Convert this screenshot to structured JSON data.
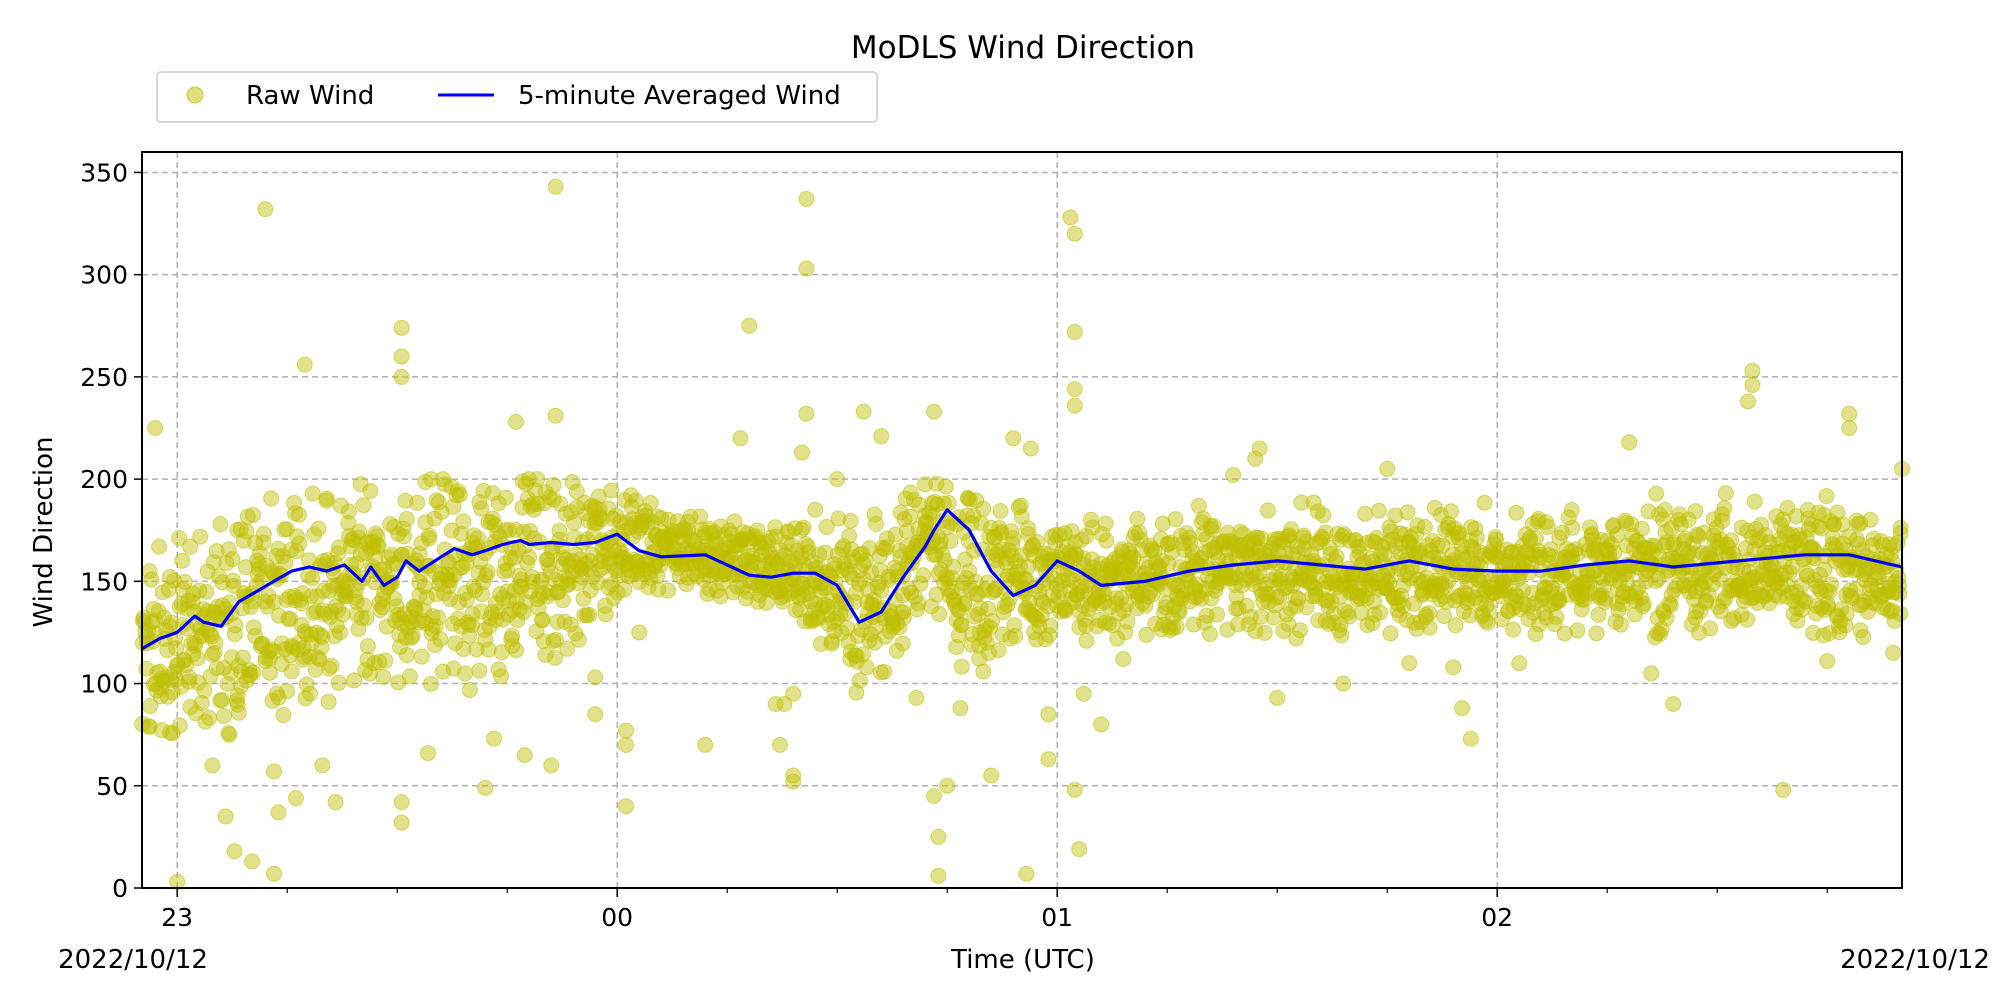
{
  "chart_data": {
    "type": "scatter",
    "title": "MoDLS Wind Direction",
    "xlabel": "Time (UTC)",
    "ylabel": "Wind Direction",
    "date_left": "2022/10/12",
    "date_right": "2022/10/12",
    "x_unit": "hours",
    "xlim": [
      -0.08,
      3.92
    ],
    "ylim": [
      0,
      360
    ],
    "yticks": [
      0,
      50,
      100,
      150,
      200,
      250,
      300,
      350
    ],
    "xticks": [
      {
        "x": 0,
        "label": "23"
      },
      {
        "x": 1,
        "label": "00"
      },
      {
        "x": 2,
        "label": "01"
      },
      {
        "x": 3,
        "label": "02"
      }
    ],
    "grid": true,
    "grid_style": "dashed",
    "legend": {
      "placement": "top-left, above plot"
    },
    "colors": {
      "raw": "#bfbf00",
      "avg": "#0000ff"
    },
    "series": [
      {
        "name": "Raw Wind",
        "kind": "scatter",
        "note": "dense cloud of raw samples; band limits (lo/mid/hi in degrees) at sampled hours plus outliers",
        "band": [
          {
            "x": -0.08,
            "lo": 80,
            "mid": 115,
            "hi": 195
          },
          {
            "x": 0.0,
            "lo": 75,
            "mid": 120,
            "hi": 200
          },
          {
            "x": 0.2,
            "lo": 75,
            "mid": 135,
            "hi": 200
          },
          {
            "x": 0.4,
            "lo": 80,
            "mid": 145,
            "hi": 200
          },
          {
            "x": 0.6,
            "lo": 75,
            "mid": 150,
            "hi": 200
          },
          {
            "x": 0.8,
            "lo": 80,
            "mid": 158,
            "hi": 200
          },
          {
            "x": 1.0,
            "lo": 135,
            "mid": 168,
            "hi": 200
          },
          {
            "x": 1.2,
            "lo": 140,
            "mid": 163,
            "hi": 185
          },
          {
            "x": 1.4,
            "lo": 130,
            "mid": 155,
            "hi": 180
          },
          {
            "x": 1.5,
            "lo": 90,
            "mid": 145,
            "hi": 180
          },
          {
            "x": 1.6,
            "lo": 100,
            "mid": 140,
            "hi": 205
          },
          {
            "x": 1.7,
            "lo": 140,
            "mid": 175,
            "hi": 215
          },
          {
            "x": 1.8,
            "lo": 75,
            "mid": 150,
            "hi": 190
          },
          {
            "x": 2.0,
            "lo": 110,
            "mid": 150,
            "hi": 185
          },
          {
            "x": 2.4,
            "lo": 120,
            "mid": 155,
            "hi": 190
          },
          {
            "x": 3.0,
            "lo": 125,
            "mid": 155,
            "hi": 195
          },
          {
            "x": 3.6,
            "lo": 120,
            "mid": 158,
            "hi": 195
          },
          {
            "x": 3.92,
            "lo": 120,
            "mid": 157,
            "hi": 195
          }
        ],
        "outliers": [
          [
            0.2,
            332
          ],
          [
            0.22,
            7
          ],
          [
            0.13,
            18
          ],
          [
            0.17,
            13
          ],
          [
            0.11,
            35
          ],
          [
            0.08,
            60
          ],
          [
            0.0,
            3
          ],
          [
            -0.05,
            225
          ],
          [
            0.23,
            37
          ],
          [
            0.27,
            44
          ],
          [
            0.29,
            256
          ],
          [
            0.22,
            57
          ],
          [
            0.36,
            42
          ],
          [
            0.33,
            60
          ],
          [
            0.51,
            274
          ],
          [
            0.51,
            260
          ],
          [
            0.51,
            250
          ],
          [
            0.51,
            32
          ],
          [
            0.51,
            42
          ],
          [
            0.57,
            66
          ],
          [
            0.7,
            49
          ],
          [
            0.72,
            73
          ],
          [
            0.77,
            228
          ],
          [
            0.79,
            65
          ],
          [
            0.86,
            343
          ],
          [
            0.86,
            231
          ],
          [
            0.85,
            60
          ],
          [
            0.95,
            85
          ],
          [
            0.95,
            103
          ],
          [
            1.02,
            40
          ],
          [
            1.02,
            77
          ],
          [
            1.02,
            70
          ],
          [
            1.05,
            125
          ],
          [
            1.2,
            70
          ],
          [
            1.28,
            220
          ],
          [
            1.3,
            275
          ],
          [
            1.36,
            90
          ],
          [
            1.37,
            70
          ],
          [
            1.4,
            52
          ],
          [
            1.4,
            55
          ],
          [
            1.38,
            90
          ],
          [
            1.4,
            95
          ],
          [
            1.43,
            337
          ],
          [
            1.43,
            303
          ],
          [
            1.43,
            232
          ],
          [
            1.42,
            213
          ],
          [
            1.45,
            185
          ],
          [
            1.5,
            200
          ],
          [
            1.53,
            112
          ],
          [
            1.56,
            233
          ],
          [
            1.6,
            221
          ],
          [
            1.65,
            135
          ],
          [
            1.68,
            93
          ],
          [
            1.72,
            233
          ],
          [
            1.72,
            45
          ],
          [
            1.73,
            25
          ],
          [
            1.73,
            6
          ],
          [
            1.75,
            50
          ],
          [
            1.78,
            88
          ],
          [
            1.8,
            155
          ],
          [
            1.85,
            55
          ],
          [
            1.9,
            220
          ],
          [
            1.93,
            7
          ],
          [
            1.94,
            215
          ],
          [
            1.98,
            85
          ],
          [
            1.98,
            63
          ],
          [
            2.03,
            328
          ],
          [
            2.04,
            320
          ],
          [
            2.04,
            272
          ],
          [
            2.04,
            244
          ],
          [
            2.04,
            236
          ],
          [
            2.05,
            19
          ],
          [
            2.04,
            48
          ],
          [
            2.06,
            95
          ],
          [
            2.1,
            80
          ],
          [
            2.15,
            112
          ],
          [
            2.4,
            202
          ],
          [
            2.45,
            210
          ],
          [
            2.46,
            215
          ],
          [
            2.5,
            93
          ],
          [
            2.65,
            100
          ],
          [
            2.75,
            205
          ],
          [
            2.8,
            110
          ],
          [
            2.9,
            108
          ],
          [
            2.92,
            88
          ],
          [
            2.94,
            73
          ],
          [
            3.05,
            110
          ],
          [
            3.3,
            218
          ],
          [
            3.35,
            105
          ],
          [
            3.4,
            90
          ],
          [
            3.58,
            253
          ],
          [
            3.58,
            246
          ],
          [
            3.57,
            238
          ],
          [
            3.65,
            48
          ],
          [
            3.75,
            111
          ],
          [
            3.8,
            232
          ],
          [
            3.8,
            225
          ],
          [
            3.9,
            115
          ],
          [
            3.92,
            205
          ]
        ]
      },
      {
        "name": "5-minute Averaged Wind",
        "kind": "line",
        "x": [
          -0.08,
          -0.04,
          0.0,
          0.04,
          0.06,
          0.1,
          0.14,
          0.18,
          0.22,
          0.26,
          0.3,
          0.34,
          0.38,
          0.42,
          0.44,
          0.47,
          0.5,
          0.52,
          0.55,
          0.6,
          0.63,
          0.67,
          0.7,
          0.74,
          0.78,
          0.8,
          0.85,
          0.9,
          0.95,
          1.0,
          1.05,
          1.1,
          1.2,
          1.3,
          1.35,
          1.4,
          1.45,
          1.5,
          1.55,
          1.6,
          1.65,
          1.7,
          1.72,
          1.75,
          1.8,
          1.85,
          1.9,
          1.95,
          2.0,
          2.05,
          2.1,
          2.2,
          2.3,
          2.4,
          2.5,
          2.6,
          2.7,
          2.8,
          2.9,
          3.0,
          3.1,
          3.2,
          3.3,
          3.4,
          3.5,
          3.6,
          3.7,
          3.8,
          3.9,
          3.92
        ],
        "values": [
          117,
          122,
          125,
          133,
          130,
          128,
          140,
          145,
          150,
          155,
          157,
          155,
          158,
          150,
          157,
          148,
          152,
          160,
          155,
          162,
          166,
          163,
          165,
          168,
          170,
          168,
          169,
          168,
          169,
          173,
          165,
          162,
          163,
          153,
          152,
          154,
          154,
          148,
          130,
          135,
          152,
          167,
          175,
          185,
          175,
          155,
          143,
          148,
          160,
          155,
          148,
          150,
          155,
          158,
          160,
          158,
          156,
          160,
          156,
          155,
          155,
          158,
          160,
          157,
          159,
          161,
          163,
          163,
          158,
          157
        ]
      }
    ]
  }
}
